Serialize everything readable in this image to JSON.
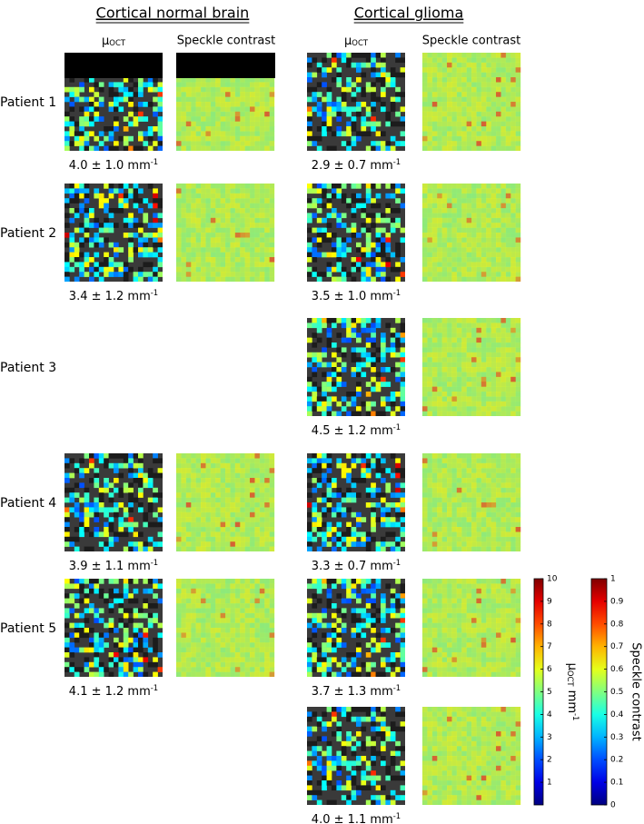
{
  "groups": [
    {
      "title": "Cortical normal brain",
      "columns": [
        {
          "symbol": "μ",
          "sub": "OCT"
        },
        "Speckle contrast"
      ]
    },
    {
      "title": "Cortical glioma",
      "columns": [
        {
          "symbol": "μ",
          "sub": "OCT"
        },
        "Speckle contrast"
      ]
    }
  ],
  "rows": [
    {
      "label": "Patient 1",
      "normal": {
        "value": "4.0 ± 1.0 mm",
        "sup": "-1"
      },
      "glioma": {
        "value": "2.9 ± 0.7 mm",
        "sup": "-1"
      }
    },
    {
      "label": "Patient 2",
      "normal": {
        "value": "3.4 ± 1.2 mm",
        "sup": "-1"
      },
      "glioma": {
        "value": "3.5 ± 1.0 mm",
        "sup": "-1"
      }
    },
    {
      "label": "Patient 3",
      "glioma": {
        "value": "4.5 ± 1.2 mm",
        "sup": "-1"
      }
    },
    {
      "label": "Patient 4",
      "normal": {
        "value": "3.9 ± 1.1 mm",
        "sup": "-1"
      },
      "glioma": {
        "value": "3.3 ± 0.7 mm",
        "sup": "-1"
      }
    },
    {
      "label": "Patient 5",
      "normal": {
        "value": "4.1 ± 1.2 mm",
        "sup": "-1"
      },
      "glioma": {
        "value": "3.7 ± 1.3 mm",
        "sup": "-1"
      }
    },
    {
      "glioma": {
        "value": "4.0 ± 1.1 mm",
        "sup": "-1"
      }
    }
  ],
  "colorbars": [
    {
      "label": {
        "symbol": "μ",
        "sub": "OCT",
        "unit": " mm",
        "sup": "-1"
      },
      "lim": [
        0,
        10
      ],
      "ticks": [
        1,
        2,
        3,
        4,
        5,
        6,
        7,
        8,
        9,
        10
      ]
    },
    {
      "label": "Speckle contrast",
      "lim": [
        0,
        1
      ],
      "ticks": [
        0,
        0.1,
        0.2,
        0.3,
        0.4,
        0.5,
        0.6,
        0.7,
        0.8,
        0.9,
        1
      ]
    }
  ]
}
